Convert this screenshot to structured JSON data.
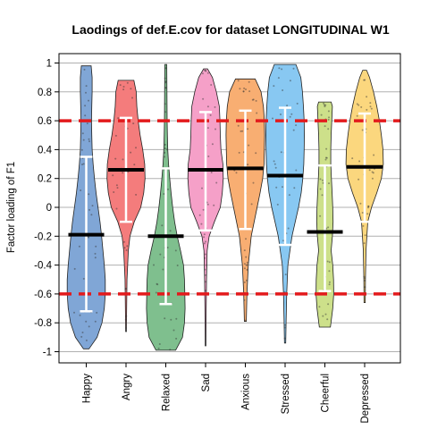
{
  "chart_data": {
    "type": "violin",
    "title": "Laodings of def.E.cov for dataset LONGITUDINAL W1",
    "xlabel": "",
    "ylabel": "Factor loading of F1",
    "ylim": [
      -1.05,
      1.05
    ],
    "yticks": [
      -1,
      -0.8,
      -0.6,
      -0.4,
      -0.2,
      0,
      0.2,
      0.4,
      0.6,
      0.8,
      1
    ],
    "ytick_labels": [
      "-1",
      "-0.8",
      "-0.6",
      "-0.4",
      "-0.2",
      "0",
      "0.2",
      "0.4",
      "0.6",
      "0.8",
      "1"
    ],
    "grid": true,
    "reference_lines": [
      {
        "y": 0.6,
        "color": "#e31a1c",
        "style": "dashed"
      },
      {
        "y": -0.6,
        "color": "#e31a1c",
        "style": "dashed"
      }
    ],
    "categories": [
      "Happy",
      "Angry",
      "Relaxed",
      "Sad",
      "Anxious",
      "Stressed",
      "Cheerful",
      "Depressed"
    ],
    "series": [
      {
        "color": "#80a6d6",
        "mean": -0.19,
        "sd_low": -0.72,
        "sd_high": 0.35,
        "ymin": -0.98,
        "ymax": 0.98,
        "profile": [
          [
            -0.98,
            0.14
          ],
          [
            -0.9,
            0.55
          ],
          [
            -0.8,
            0.8
          ],
          [
            -0.7,
            0.92
          ],
          [
            -0.6,
            0.97
          ],
          [
            -0.5,
            0.97
          ],
          [
            -0.4,
            0.92
          ],
          [
            -0.3,
            0.85
          ],
          [
            -0.2,
            0.78
          ],
          [
            -0.1,
            0.7
          ],
          [
            0,
            0.6
          ],
          [
            0.1,
            0.5
          ],
          [
            0.2,
            0.42
          ],
          [
            0.3,
            0.35
          ],
          [
            0.4,
            0.3
          ],
          [
            0.5,
            0.28
          ],
          [
            0.6,
            0.27
          ],
          [
            0.7,
            0.28
          ],
          [
            0.8,
            0.3
          ],
          [
            0.9,
            0.3
          ],
          [
            0.98,
            0.25
          ]
        ]
      },
      {
        "color": "#f47c7c",
        "mean": 0.26,
        "sd_low": -0.1,
        "sd_high": 0.62,
        "ymin": -0.86,
        "ymax": 0.88,
        "profile": [
          [
            -0.86,
            0.02
          ],
          [
            -0.7,
            0.03
          ],
          [
            -0.5,
            0.05
          ],
          [
            -0.3,
            0.12
          ],
          [
            -0.2,
            0.2
          ],
          [
            -0.1,
            0.42
          ],
          [
            0,
            0.75
          ],
          [
            0.1,
            0.9
          ],
          [
            0.2,
            0.97
          ],
          [
            0.3,
            0.95
          ],
          [
            0.4,
            0.85
          ],
          [
            0.5,
            0.72
          ],
          [
            0.6,
            0.62
          ],
          [
            0.7,
            0.55
          ],
          [
            0.8,
            0.52
          ],
          [
            0.88,
            0.4
          ]
        ]
      },
      {
        "color": "#7fbf8e",
        "mean": -0.2,
        "sd_low": -0.67,
        "sd_high": 0.27,
        "ymin": -0.99,
        "ymax": 0.99,
        "profile": [
          [
            -0.99,
            0.5
          ],
          [
            -0.9,
            0.85
          ],
          [
            -0.8,
            0.95
          ],
          [
            -0.7,
            0.98
          ],
          [
            -0.6,
            0.97
          ],
          [
            -0.5,
            0.95
          ],
          [
            -0.4,
            0.9
          ],
          [
            -0.3,
            0.75
          ],
          [
            -0.2,
            0.58
          ],
          [
            -0.1,
            0.45
          ],
          [
            0,
            0.35
          ],
          [
            0.1,
            0.27
          ],
          [
            0.2,
            0.2
          ],
          [
            0.3,
            0.14
          ],
          [
            0.4,
            0.1
          ],
          [
            0.5,
            0.08
          ],
          [
            0.6,
            0.07
          ],
          [
            0.8,
            0.06
          ],
          [
            0.99,
            0.05
          ]
        ]
      },
      {
        "color": "#f5a0c8",
        "mean": 0.26,
        "sd_low": -0.16,
        "sd_high": 0.66,
        "ymin": -0.96,
        "ymax": 0.96,
        "profile": [
          [
            -0.96,
            0.02
          ],
          [
            -0.7,
            0.03
          ],
          [
            -0.5,
            0.05
          ],
          [
            -0.3,
            0.08
          ],
          [
            -0.2,
            0.18
          ],
          [
            -0.1,
            0.45
          ],
          [
            0,
            0.75
          ],
          [
            0.1,
            0.85
          ],
          [
            0.2,
            0.9
          ],
          [
            0.3,
            0.88
          ],
          [
            0.4,
            0.78
          ],
          [
            0.5,
            0.75
          ],
          [
            0.6,
            0.73
          ],
          [
            0.7,
            0.7
          ],
          [
            0.8,
            0.55
          ],
          [
            0.9,
            0.35
          ],
          [
            0.96,
            0.1
          ]
        ]
      },
      {
        "color": "#f8ae72",
        "mean": 0.27,
        "sd_low": -0.15,
        "sd_high": 0.67,
        "ymin": -0.79,
        "ymax": 0.89,
        "profile": [
          [
            -0.79,
            0.05
          ],
          [
            -0.6,
            0.08
          ],
          [
            -0.4,
            0.15
          ],
          [
            -0.2,
            0.3
          ],
          [
            0,
            0.6
          ],
          [
            0.1,
            0.75
          ],
          [
            0.2,
            0.88
          ],
          [
            0.3,
            0.95
          ],
          [
            0.4,
            0.97
          ],
          [
            0.5,
            0.98
          ],
          [
            0.6,
            0.97
          ],
          [
            0.7,
            0.92
          ],
          [
            0.8,
            0.8
          ],
          [
            0.89,
            0.5
          ]
        ]
      },
      {
        "color": "#88c8f2",
        "mean": 0.22,
        "sd_low": -0.26,
        "sd_high": 0.69,
        "ymin": -0.94,
        "ymax": 0.99,
        "profile": [
          [
            -0.94,
            0.03
          ],
          [
            -0.8,
            0.05
          ],
          [
            -0.6,
            0.08
          ],
          [
            -0.4,
            0.14
          ],
          [
            -0.2,
            0.35
          ],
          [
            0,
            0.68
          ],
          [
            0.1,
            0.82
          ],
          [
            0.2,
            0.9
          ],
          [
            0.3,
            0.95
          ],
          [
            0.4,
            0.97
          ],
          [
            0.5,
            0.98
          ],
          [
            0.6,
            0.97
          ],
          [
            0.7,
            0.93
          ],
          [
            0.8,
            0.88
          ],
          [
            0.9,
            0.8
          ],
          [
            0.99,
            0.55
          ]
        ]
      },
      {
        "color": "#cde08a",
        "mean": -0.17,
        "sd_low": -0.58,
        "sd_high": 0.29,
        "ymin": -0.83,
        "ymax": 0.73,
        "profile": [
          [
            -0.83,
            0.28
          ],
          [
            -0.7,
            0.4
          ],
          [
            -0.6,
            0.45
          ],
          [
            -0.5,
            0.44
          ],
          [
            -0.4,
            0.4
          ],
          [
            -0.3,
            0.32
          ],
          [
            -0.2,
            0.38
          ],
          [
            -0.1,
            0.42
          ],
          [
            0,
            0.4
          ],
          [
            0.1,
            0.37
          ],
          [
            0.2,
            0.33
          ],
          [
            0.3,
            0.3
          ],
          [
            0.4,
            0.3
          ],
          [
            0.5,
            0.32
          ],
          [
            0.6,
            0.35
          ],
          [
            0.7,
            0.38
          ],
          [
            0.73,
            0.32
          ]
        ]
      },
      {
        "color": "#fbd77e",
        "mean": 0.28,
        "sd_low": -0.1,
        "sd_high": 0.65,
        "ymin": -0.66,
        "ymax": 0.95,
        "profile": [
          [
            -0.66,
            0.03
          ],
          [
            -0.5,
            0.04
          ],
          [
            -0.3,
            0.07
          ],
          [
            -0.1,
            0.16
          ],
          [
            0,
            0.35
          ],
          [
            0.1,
            0.62
          ],
          [
            0.2,
            0.85
          ],
          [
            0.3,
            0.95
          ],
          [
            0.4,
            0.93
          ],
          [
            0.5,
            0.85
          ],
          [
            0.6,
            0.75
          ],
          [
            0.7,
            0.62
          ],
          [
            0.8,
            0.45
          ],
          [
            0.9,
            0.25
          ],
          [
            0.95,
            0.1
          ]
        ]
      }
    ]
  }
}
